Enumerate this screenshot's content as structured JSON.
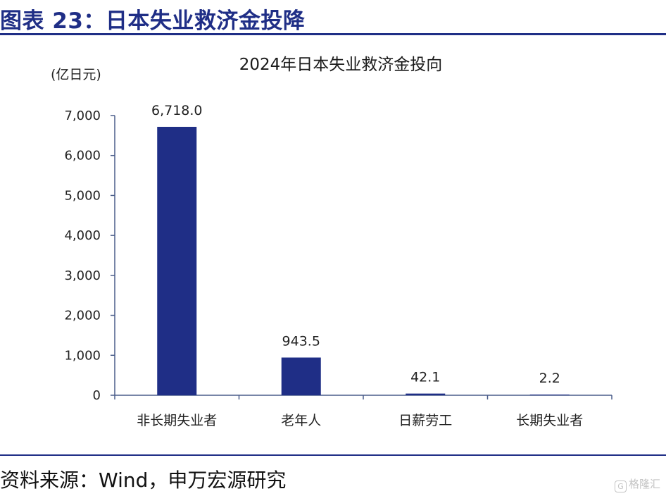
{
  "figure_title": "图表 23：日本失业救济金投降",
  "source": "资料来源：Wind，申万宏源研究",
  "watermark": "格隆汇",
  "chart_data": {
    "type": "bar",
    "title": "2024年日本失业救济金投向",
    "unit": "(亿日元)",
    "categories": [
      "非长期失业者",
      "老年人",
      "日薪劳工",
      "长期失业者"
    ],
    "values": [
      6718.0,
      943.5,
      42.1,
      2.2
    ],
    "data_labels": [
      "6,718.0",
      "943.5",
      "42.1",
      "2.2"
    ],
    "ylim": [
      0,
      7000
    ],
    "yticks": [
      0,
      1000,
      2000,
      3000,
      4000,
      5000,
      6000,
      7000
    ],
    "ytick_labels": [
      "0",
      "1,000",
      "2,000",
      "3,000",
      "4,000",
      "5,000",
      "6,000",
      "7,000"
    ],
    "grid": false,
    "legend": "none",
    "bar_color": "#1f2e86",
    "axis_color": "#4a5d8a"
  }
}
